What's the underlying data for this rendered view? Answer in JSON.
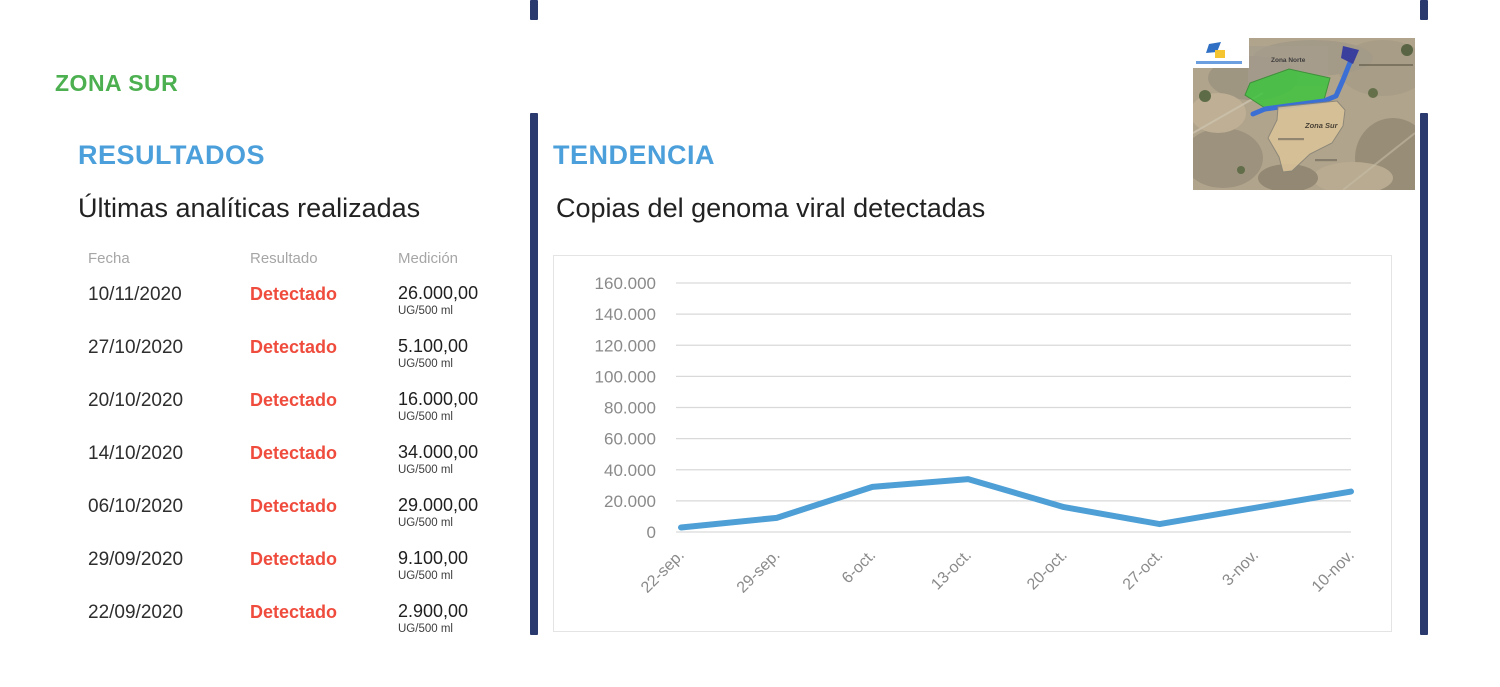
{
  "page": {
    "zone_title": "ZONA SUR"
  },
  "colors": {
    "zone_green": "#4cb050",
    "section_blue": "#4b9fdb",
    "detect_red": "#ef4c3d",
    "navy_bar": "#2b3a6e",
    "grid_gray": "#d9d9d9",
    "tick_gray": "#8a8a8a",
    "line_blue": "#4e9fd6"
  },
  "results": {
    "section_title": "RESULTADOS",
    "subtitle": "Últimas analíticas realizadas",
    "columns": [
      "Fecha",
      "Resultado",
      "Medición"
    ],
    "rows": [
      {
        "fecha": "10/11/2020",
        "resultado": "Detectado",
        "medicion": "26.000,00",
        "unidad": "UG/500 ml"
      },
      {
        "fecha": "27/10/2020",
        "resultado": "Detectado",
        "medicion": "5.100,00",
        "unidad": "UG/500 ml"
      },
      {
        "fecha": "20/10/2020",
        "resultado": "Detectado",
        "medicion": "16.000,00",
        "unidad": "UG/500 ml"
      },
      {
        "fecha": "14/10/2020",
        "resultado": "Detectado",
        "medicion": "34.000,00",
        "unidad": "UG/500 ml"
      },
      {
        "fecha": "06/10/2020",
        "resultado": "Detectado",
        "medicion": "29.000,00",
        "unidad": "UG/500 ml"
      },
      {
        "fecha": "29/09/2020",
        "resultado": "Detectado",
        "medicion": "9.100,00",
        "unidad": "UG/500 ml"
      },
      {
        "fecha": "22/09/2020",
        "resultado": "Detectado",
        "medicion": "2.900,00",
        "unidad": "UG/500 ml"
      }
    ]
  },
  "trend": {
    "section_title": "TENDENCIA",
    "chart_title": "Copias del genoma viral detectadas"
  },
  "map": {
    "label_north": "Zona Norte",
    "label_south": "Zona Sur"
  },
  "chart_data": {
    "type": "line",
    "title": "Copias del genoma viral detectadas",
    "x": [
      "22-sep.",
      "29-sep.",
      "6-oct.",
      "13-oct.",
      "20-oct.",
      "27-oct.",
      "3-nov.",
      "10-nov."
    ],
    "values": [
      2900,
      9100,
      29000,
      34000,
      16000,
      5100,
      null,
      26000
    ],
    "ylim": [
      0,
      160000
    ],
    "ytick_step": 20000,
    "ytick_labels": [
      "0",
      "20.000",
      "40.000",
      "60.000",
      "80.000",
      "100.000",
      "120.000",
      "140.000",
      "160.000"
    ],
    "grid": true,
    "legend": "none",
    "line_color": "#4e9fd6"
  }
}
